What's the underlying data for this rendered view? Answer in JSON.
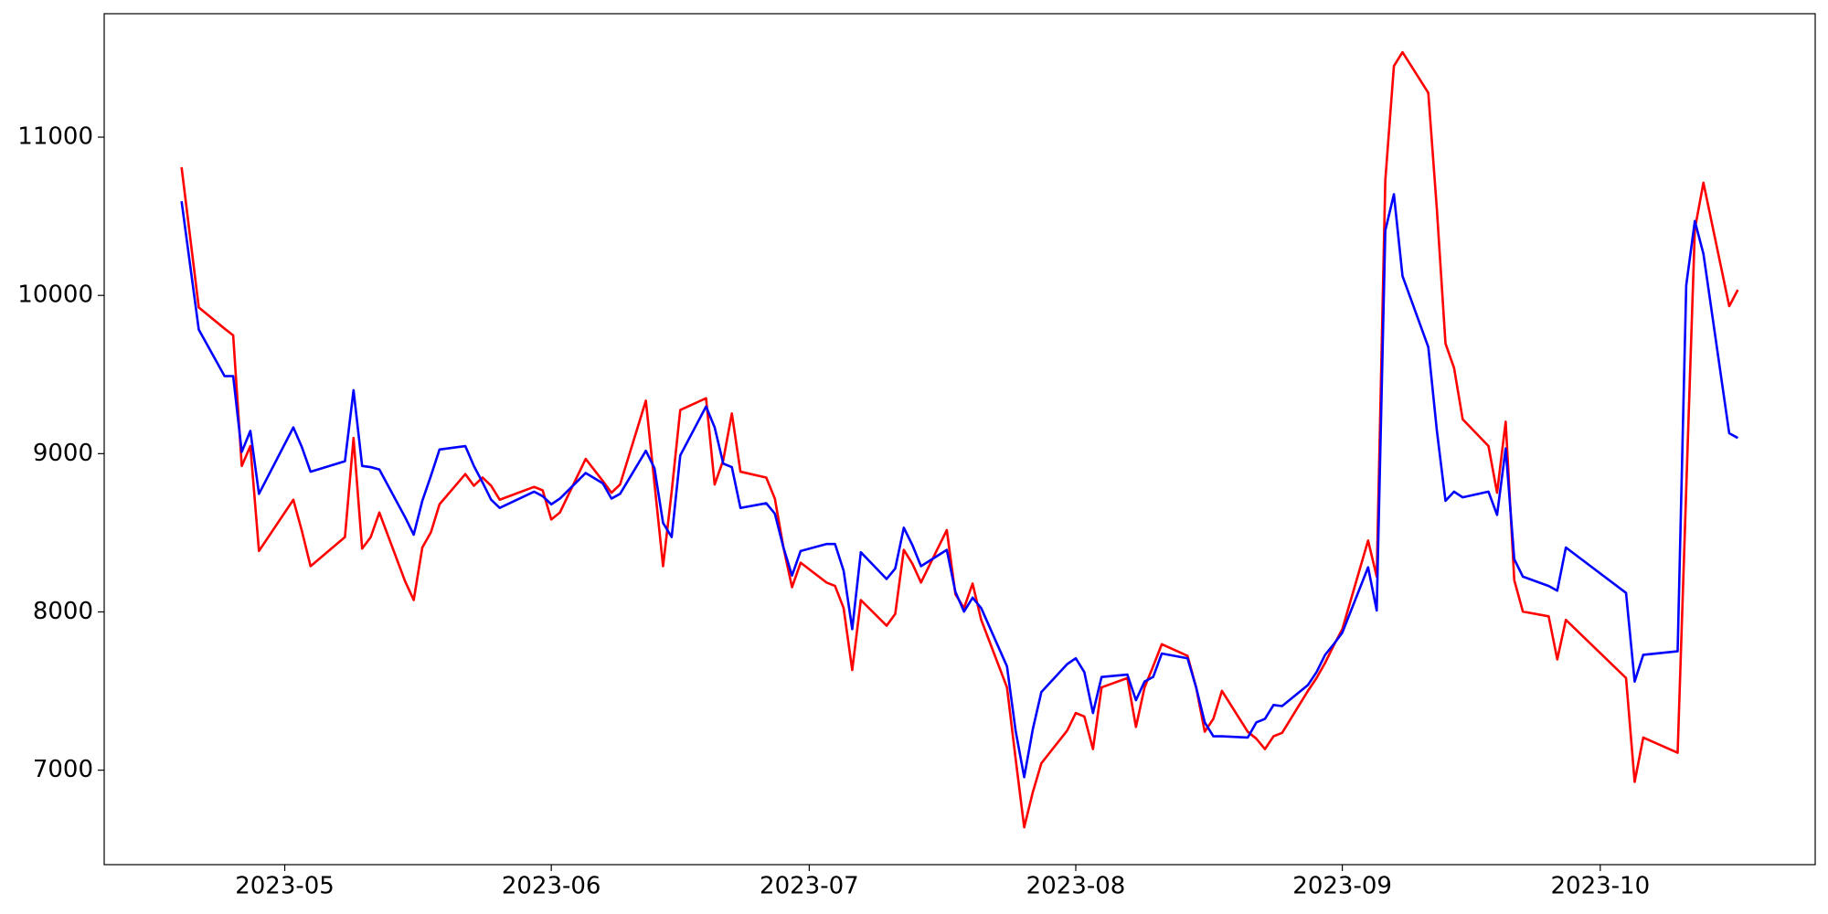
{
  "chart_data": {
    "type": "line",
    "x": [
      "2023-04-19",
      "2023-04-21",
      "2023-04-24",
      "2023-04-25",
      "2023-04-26",
      "2023-04-27",
      "2023-04-28",
      "2023-05-02",
      "2023-05-03",
      "2023-05-04",
      "2023-05-08",
      "2023-05-09",
      "2023-05-10",
      "2023-05-11",
      "2023-05-12",
      "2023-05-15",
      "2023-05-16",
      "2023-05-17",
      "2023-05-18",
      "2023-05-19",
      "2023-05-22",
      "2023-05-23",
      "2023-05-24",
      "2023-05-25",
      "2023-05-26",
      "2023-05-30",
      "2023-05-31",
      "2023-06-01",
      "2023-06-02",
      "2023-06-05",
      "2023-06-07",
      "2023-06-08",
      "2023-06-09",
      "2023-06-12",
      "2023-06-13",
      "2023-06-14",
      "2023-06-15",
      "2023-06-16",
      "2023-06-19",
      "2023-06-20",
      "2023-06-21",
      "2023-06-22",
      "2023-06-23",
      "2023-06-26",
      "2023-06-27",
      "2023-06-28",
      "2023-06-29",
      "2023-06-30",
      "2023-07-03",
      "2023-07-04",
      "2023-07-05",
      "2023-07-06",
      "2023-07-07",
      "2023-07-10",
      "2023-07-11",
      "2023-07-12",
      "2023-07-13",
      "2023-07-14",
      "2023-07-17",
      "2023-07-18",
      "2023-07-19",
      "2023-07-20",
      "2023-07-21",
      "2023-07-24",
      "2023-07-25",
      "2023-07-26",
      "2023-07-27",
      "2023-07-28",
      "2023-07-31",
      "2023-08-01",
      "2023-08-02",
      "2023-08-03",
      "2023-08-04",
      "2023-08-07",
      "2023-08-08",
      "2023-08-09",
      "2023-08-10",
      "2023-08-11",
      "2023-08-14",
      "2023-08-15",
      "2023-08-16",
      "2023-08-17",
      "2023-08-18",
      "2023-08-21",
      "2023-08-22",
      "2023-08-23",
      "2023-08-24",
      "2023-08-25",
      "2023-08-28",
      "2023-08-29",
      "2023-08-30",
      "2023-08-31",
      "2023-09-01",
      "2023-09-04",
      "2023-09-05",
      "2023-09-06",
      "2023-09-07",
      "2023-09-08",
      "2023-09-11",
      "2023-09-12",
      "2023-09-13",
      "2023-09-14",
      "2023-09-15",
      "2023-09-18",
      "2023-09-19",
      "2023-09-20",
      "2023-09-21",
      "2023-09-22",
      "2023-09-25",
      "2023-09-26",
      "2023-09-27",
      "2023-10-04",
      "2023-10-05",
      "2023-10-06",
      "2023-10-10",
      "2023-10-11",
      "2023-10-12",
      "2023-10-13",
      "2023-10-16",
      "2023-10-17"
    ],
    "series": [
      {
        "color": "#ff0000",
        "values": [
          10810,
          9924,
          9790,
          9748,
          8922,
          9048,
          8385,
          8709,
          8510,
          8289,
          8473,
          9099,
          8400,
          8473,
          8628,
          8193,
          8075,
          8407,
          8503,
          8680,
          8871,
          8797,
          8849,
          8797,
          8709,
          8790,
          8768,
          8584,
          8628,
          8967,
          8827,
          8753,
          8805,
          9335,
          8812,
          8289,
          8760,
          9276,
          9350,
          8805,
          8959,
          9254,
          8886,
          8849,
          8716,
          8407,
          8156,
          8311,
          8186,
          8164,
          8024,
          7633,
          8075,
          7913,
          7987,
          8392,
          8304,
          8186,
          8517,
          8112,
          8024,
          8179,
          7950,
          7523,
          7074,
          6639,
          6860,
          7044,
          7250,
          7361,
          7339,
          7133,
          7523,
          7582,
          7273,
          7523,
          7656,
          7796,
          7722,
          7523,
          7243,
          7324,
          7501,
          7243,
          7199,
          7133,
          7214,
          7236,
          7501,
          7582,
          7678,
          7788,
          7891,
          8451,
          8223,
          10727,
          11449,
          11537,
          11280,
          10543,
          9696,
          9541,
          9217,
          9048,
          8753,
          9202,
          8201,
          8002,
          7972,
          7700,
          7950,
          7582,
          6926,
          7206,
          7110,
          8775,
          10418,
          10712,
          9932,
          10035
        ]
      },
      {
        "color": "#0000ff",
        "values": [
          10595,
          9784,
          9490,
          9490,
          9011,
          9144,
          8746,
          9166,
          9040,
          8886,
          8952,
          9401,
          8922,
          8915,
          8900,
          8598,
          8488,
          8702,
          8860,
          9026,
          9048,
          8922,
          8819,
          8709,
          8657,
          8760,
          8731,
          8680,
          8716,
          8878,
          8812,
          8716,
          8746,
          9018,
          8908,
          8562,
          8473,
          8989,
          9298,
          9166,
          8937,
          8915,
          8657,
          8687,
          8621,
          8407,
          8230,
          8385,
          8429,
          8429,
          8260,
          7891,
          8377,
          8208,
          8274,
          8532,
          8422,
          8289,
          8392,
          8127,
          8002,
          8090,
          8024,
          7656,
          7250,
          6956,
          7258,
          7494,
          7670,
          7707,
          7619,
          7361,
          7589,
          7604,
          7442,
          7560,
          7589,
          7737,
          7707,
          7523,
          7302,
          7214,
          7214,
          7206,
          7302,
          7324,
          7412,
          7405,
          7538,
          7619,
          7729,
          7796,
          7869,
          8282,
          8009,
          10410,
          10639,
          10123,
          9674,
          9144,
          8702,
          8760,
          8724,
          8760,
          8613,
          9033,
          8333,
          8223,
          8164,
          8134,
          8407,
          8120,
          7560,
          7729,
          7751,
          10064,
          10470,
          10263,
          9129,
          9099
        ]
      }
    ],
    "xlim": [
      "2023-04-10",
      "2023-10-26"
    ],
    "xticks": [
      {
        "value": "2023-05-01",
        "label": "2023-05"
      },
      {
        "value": "2023-06-01",
        "label": "2023-06"
      },
      {
        "value": "2023-07-01",
        "label": "2023-07"
      },
      {
        "value": "2023-08-01",
        "label": "2023-08"
      },
      {
        "value": "2023-09-01",
        "label": "2023-09"
      },
      {
        "value": "2023-10-01",
        "label": "2023-10"
      }
    ],
    "ylim": [
      6403,
      11780
    ],
    "yticks": [
      7000,
      8000,
      9000,
      10000,
      11000
    ],
    "grid": false
  }
}
